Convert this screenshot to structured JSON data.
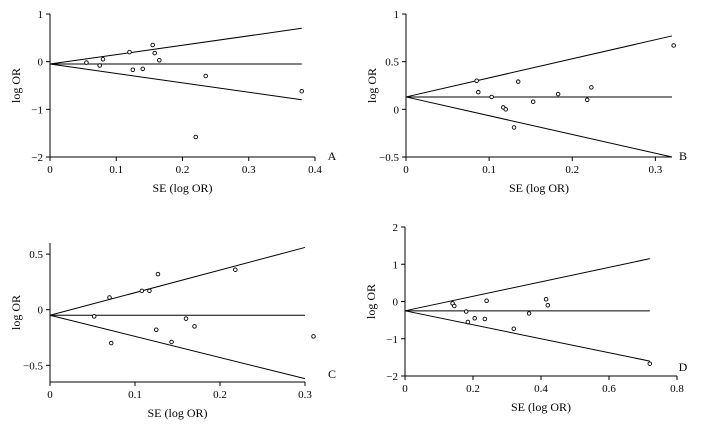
{
  "chart_data": [
    {
      "type": "scatter",
      "panel_label": "A",
      "xlabel": "SE (log OR)",
      "ylabel": "log OR",
      "xlim": [
        0,
        0.4
      ],
      "ylim": [
        -2,
        1
      ],
      "x_ticks": [
        "0",
        "0.1",
        "0.2",
        "0.3",
        "0.4"
      ],
      "y_ticks": [
        "1",
        "0",
        "−1",
        "−2"
      ],
      "x_tick_values": [
        0,
        0.1,
        0.2,
        0.3,
        0.4
      ],
      "y_tick_values": [
        1,
        0,
        -1,
        -2
      ],
      "pooled": -0.05,
      "funnel_x_max": 0.38,
      "upper_end": 0.7,
      "lower_end": -0.8,
      "points": [
        {
          "x": 0.055,
          "y": -0.02
        },
        {
          "x": 0.075,
          "y": -0.08
        },
        {
          "x": 0.08,
          "y": 0.05
        },
        {
          "x": 0.12,
          "y": 0.2
        },
        {
          "x": 0.125,
          "y": -0.17
        },
        {
          "x": 0.14,
          "y": -0.15
        },
        {
          "x": 0.155,
          "y": 0.35
        },
        {
          "x": 0.158,
          "y": 0.18
        },
        {
          "x": 0.165,
          "y": 0.03
        },
        {
          "x": 0.235,
          "y": -0.3
        },
        {
          "x": 0.22,
          "y": -1.58
        },
        {
          "x": 0.38,
          "y": -0.62
        }
      ]
    },
    {
      "type": "scatter",
      "panel_label": "B",
      "xlabel": "SE (log OR)",
      "ylabel": "log OR",
      "xlim": [
        0,
        0.32
      ],
      "ylim": [
        -0.5,
        1
      ],
      "x_ticks": [
        "0",
        "0.1",
        "0.2",
        "0.3"
      ],
      "y_ticks": [
        "1",
        "0.5",
        "0",
        "−0.5"
      ],
      "x_tick_values": [
        0,
        0.1,
        0.2,
        0.3
      ],
      "y_tick_values": [
        1,
        0.5,
        0,
        -0.5
      ],
      "pooled": 0.13,
      "funnel_x_max": 0.32,
      "upper_end": 0.77,
      "lower_end": -0.5,
      "points": [
        {
          "x": 0.085,
          "y": 0.3
        },
        {
          "x": 0.087,
          "y": 0.18
        },
        {
          "x": 0.103,
          "y": 0.13
        },
        {
          "x": 0.117,
          "y": 0.02
        },
        {
          "x": 0.12,
          "y": 0.0
        },
        {
          "x": 0.13,
          "y": -0.19
        },
        {
          "x": 0.135,
          "y": 0.29
        },
        {
          "x": 0.153,
          "y": 0.08
        },
        {
          "x": 0.183,
          "y": 0.16
        },
        {
          "x": 0.218,
          "y": 0.1
        },
        {
          "x": 0.223,
          "y": 0.23
        },
        {
          "x": 0.322,
          "y": 0.67
        }
      ]
    },
    {
      "type": "scatter",
      "panel_label": "C",
      "xlabel": "SE (log OR)",
      "ylabel": "log OR",
      "xlim": [
        0,
        0.3
      ],
      "ylim": [
        -0.65,
        0.6
      ],
      "x_ticks": [
        "0",
        "0.1",
        "0.2",
        "0.3"
      ],
      "y_ticks": [
        "0.5",
        "0",
        "−0.5"
      ],
      "x_tick_values": [
        0,
        0.1,
        0.2,
        0.3
      ],
      "y_tick_values": [
        0.5,
        0,
        -0.5
      ],
      "pooled": -0.05,
      "funnel_x_max": 0.3,
      "upper_end": 0.56,
      "lower_end": -0.62,
      "points": [
        {
          "x": 0.052,
          "y": -0.06
        },
        {
          "x": 0.07,
          "y": 0.11
        },
        {
          "x": 0.072,
          "y": -0.3
        },
        {
          "x": 0.108,
          "y": 0.17
        },
        {
          "x": 0.117,
          "y": 0.17
        },
        {
          "x": 0.125,
          "y": -0.18
        },
        {
          "x": 0.127,
          "y": 0.32
        },
        {
          "x": 0.143,
          "y": -0.29
        },
        {
          "x": 0.16,
          "y": -0.08
        },
        {
          "x": 0.17,
          "y": -0.15
        },
        {
          "x": 0.218,
          "y": 0.36
        },
        {
          "x": 0.31,
          "y": -0.24
        }
      ]
    },
    {
      "type": "scatter",
      "panel_label": "D",
      "xlabel": "SE (log OR)",
      "ylabel": "log OR",
      "xlim": [
        0,
        0.8
      ],
      "ylim": [
        -2,
        2
      ],
      "x_ticks": [
        "0",
        "0.2",
        "0.4",
        "0.6",
        "0.8"
      ],
      "y_ticks": [
        "2",
        "1",
        "0",
        "−1",
        "−2"
      ],
      "x_tick_values": [
        0,
        0.2,
        0.4,
        0.6,
        0.8
      ],
      "y_tick_values": [
        2,
        1,
        0,
        -1,
        -2
      ],
      "pooled": -0.25,
      "funnel_x_max": 0.72,
      "upper_end": 1.15,
      "lower_end": -1.6,
      "points": [
        {
          "x": 0.14,
          "y": -0.05
        },
        {
          "x": 0.145,
          "y": -0.12
        },
        {
          "x": 0.18,
          "y": -0.27
        },
        {
          "x": 0.185,
          "y": -0.55
        },
        {
          "x": 0.205,
          "y": -0.45
        },
        {
          "x": 0.235,
          "y": -0.47
        },
        {
          "x": 0.24,
          "y": 0.02
        },
        {
          "x": 0.32,
          "y": -0.73
        },
        {
          "x": 0.365,
          "y": -0.32
        },
        {
          "x": 0.415,
          "y": 0.06
        },
        {
          "x": 0.42,
          "y": -0.1
        },
        {
          "x": 0.72,
          "y": -1.67
        }
      ]
    }
  ]
}
